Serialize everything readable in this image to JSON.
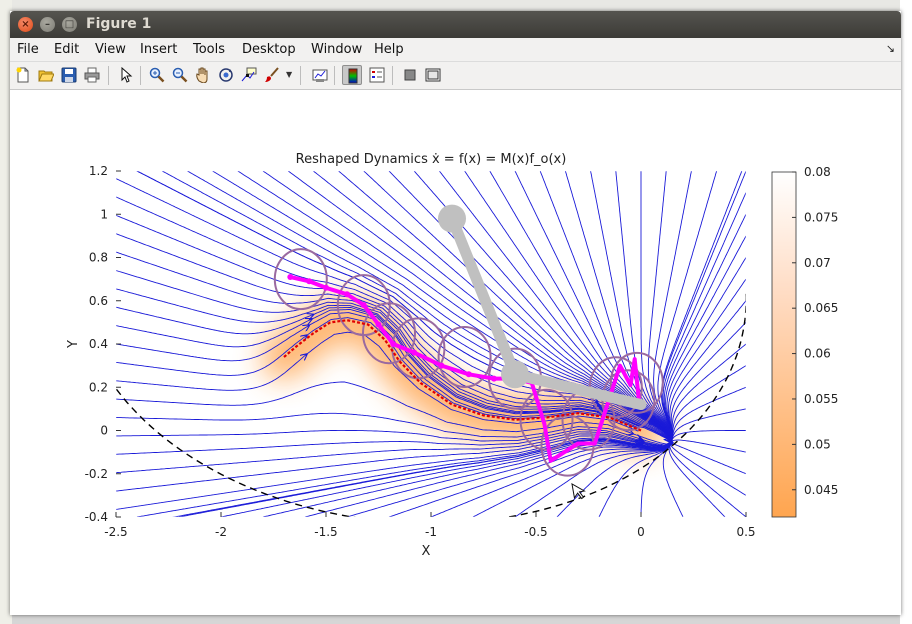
{
  "window": {
    "title": "Figure 1"
  },
  "menu": [
    "File",
    "Edit",
    "View",
    "Insert",
    "Tools",
    "Desktop",
    "Window",
    "Help"
  ],
  "toolbar_icons": [
    "new-figure-icon",
    "open-file-icon",
    "save-icon",
    "print-icon",
    "pointer-icon",
    "zoom-in-icon",
    "zoom-out-icon",
    "pan-icon",
    "rotate-3d-icon",
    "data-cursor-icon",
    "brush-icon",
    "link-plot-icon",
    "colorbar-icon",
    "legend-icon",
    "hide-plot-tools-icon",
    "show-plot-tools-icon"
  ],
  "chart_data": {
    "type": "streamplot",
    "title": "Reshaped Dynamics  ẋ = f(x) = M(x)f_o(x)",
    "xlabel": "X",
    "ylabel": "Y",
    "xlim": [
      -2.5,
      0.5
    ],
    "ylim": [
      -0.4,
      1.2
    ],
    "xticks": [
      "-2.5",
      "-2",
      "-1.5",
      "-1",
      "-0.5",
      "0",
      "0.5"
    ],
    "yticks": [
      "1.2",
      "1",
      "0.8",
      "0.6",
      "0.4",
      "0.2",
      "0",
      "-0.2",
      "-0.4"
    ],
    "colorbar": {
      "ticks": [
        "0.08",
        "0.075",
        "0.07",
        "0.065",
        "0.06",
        "0.055",
        "0.05",
        "0.045"
      ],
      "range": [
        0.042,
        0.08
      ],
      "colors": [
        "#ffffff",
        "#ffa54f"
      ]
    },
    "colors": {
      "streamlines": "#1a1ad8",
      "reference_trajectory": "#e00000",
      "robot_trajectory": "#ff00ff",
      "robot_links": "#c0c0c0",
      "circles": "#9a6aa0",
      "boundary": "#000000"
    },
    "red_trajectory": [
      [
        -1.7,
        0.34
      ],
      [
        -1.64,
        0.39
      ],
      [
        -1.56,
        0.45
      ],
      [
        -1.48,
        0.5
      ],
      [
        -1.4,
        0.51
      ],
      [
        -1.3,
        0.49
      ],
      [
        -1.22,
        0.42
      ],
      [
        -1.15,
        0.32
      ],
      [
        -1.05,
        0.22
      ],
      [
        -0.9,
        0.12
      ],
      [
        -0.75,
        0.07
      ],
      [
        -0.6,
        0.05
      ],
      [
        -0.45,
        0.06
      ],
      [
        -0.3,
        0.08
      ],
      [
        -0.15,
        0.06
      ],
      [
        -0.05,
        0.02
      ],
      [
        0.0,
        0.0
      ]
    ],
    "magenta_trajectory": [
      [
        -1.67,
        0.71
      ],
      [
        -1.58,
        0.69
      ],
      [
        -1.5,
        0.66
      ],
      [
        -1.4,
        0.63
      ],
      [
        -1.32,
        0.58
      ],
      [
        -1.25,
        0.49
      ],
      [
        -1.18,
        0.4
      ],
      [
        -1.08,
        0.36
      ],
      [
        -0.95,
        0.3
      ],
      [
        -0.82,
        0.26
      ],
      [
        -0.7,
        0.24
      ],
      [
        -0.6,
        0.24
      ],
      [
        -0.52,
        0.22
      ],
      [
        -0.46,
        0.03
      ],
      [
        -0.43,
        -0.14
      ],
      [
        -0.3,
        -0.06
      ],
      [
        -0.22,
        -0.06
      ],
      [
        -0.18,
        0.06
      ],
      [
        -0.1,
        0.3
      ],
      [
        -0.05,
        0.21
      ],
      [
        -0.03,
        0.33
      ],
      [
        -0.01,
        0.14
      ]
    ],
    "robot_arm": {
      "joints": [
        [
          -0.9,
          0.98
        ],
        [
          -0.6,
          0.26
        ],
        [
          0.0,
          0.12
        ]
      ]
    },
    "circles": [
      [
        -1.62,
        0.7
      ],
      [
        -1.32,
        0.58
      ],
      [
        -1.2,
        0.45
      ],
      [
        -1.06,
        0.38
      ],
      [
        -0.84,
        0.34
      ],
      [
        -0.6,
        0.24
      ],
      [
        -0.45,
        0.05
      ],
      [
        -0.35,
        -0.07
      ],
      [
        -0.25,
        0.05
      ],
      [
        -0.12,
        0.2
      ],
      [
        -0.06,
        0.14
      ],
      [
        -0.02,
        0.22
      ]
    ]
  }
}
